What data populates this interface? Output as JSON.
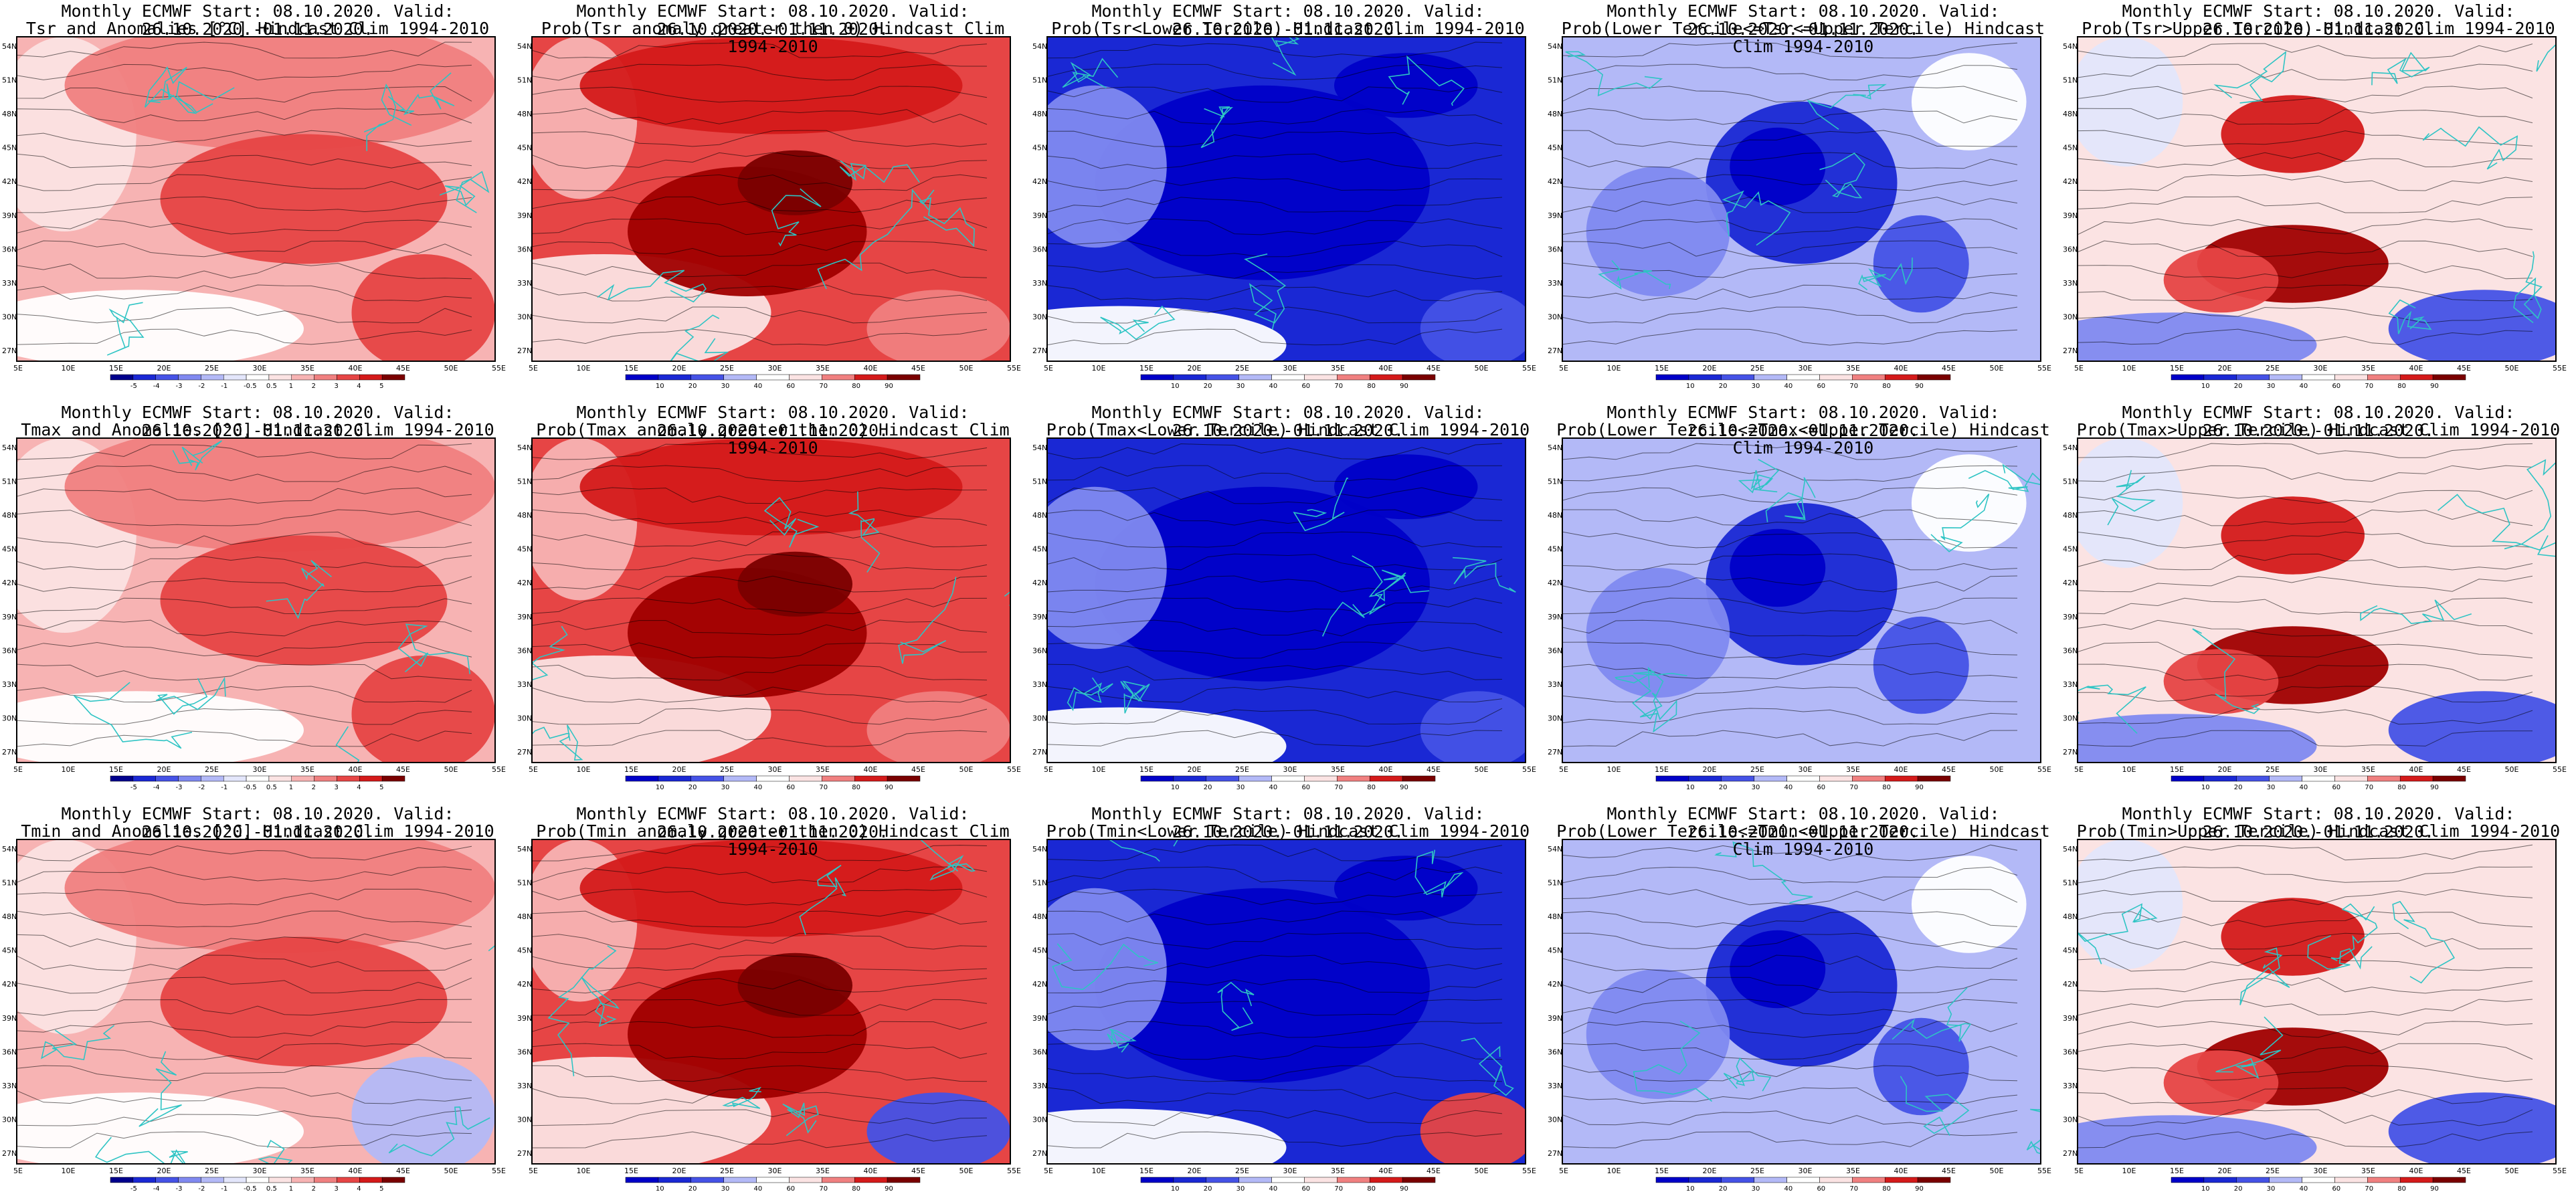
{
  "figure": {
    "layout": "3 rows x 5 columns of forecast maps",
    "lon_labels": [
      "5E",
      "10E",
      "15E",
      "20E",
      "25E",
      "30E",
      "35E",
      "40E",
      "45E",
      "50E",
      "55E"
    ],
    "lat_labels": [
      "54N",
      "51N",
      "48N",
      "45N",
      "42N",
      "39N",
      "36N",
      "33N",
      "30N",
      "27N"
    ],
    "colors": {
      "coast": "#2ec4c4",
      "contour": "#000000",
      "red_scale": [
        "#fbe3e3",
        "#f7b3b3",
        "#f08080",
        "#e64545",
        "#d41a1a",
        "#a00000",
        "#7a0000"
      ],
      "blue_scale": [
        "#e3e6fb",
        "#b3b9f7",
        "#8089f0",
        "#4552e6",
        "#1a28d4",
        "#0000c8",
        "#00008c"
      ]
    },
    "anom_colorbar_labels": [
      "-5",
      "-4",
      "-3",
      "-2",
      "-1",
      "-0.5",
      "0.5",
      "1",
      "2",
      "3",
      "4",
      "5"
    ],
    "prob_colorbar_labels": [
      "10",
      "20",
      "30",
      "40",
      "60",
      "70",
      "80",
      "90"
    ]
  },
  "panels": [
    {
      "id": "r1c1",
      "line1": "Monthly ECMWF Start: 08.10.2020. Valid: 26.10.2020.-01.11.2020.",
      "line2": "Tsr and Anomalies [°C] Hindcast Clim 1994-2010",
      "kind": "anom",
      "scheme": "warm-moderate"
    },
    {
      "id": "r1c2",
      "line1": "Monthly ECMWF Start: 08.10.2020. Valid: 26.10.2020.-01.11.2020.",
      "line2": "Prob(Tsr anomaly greater then 0) Hindcast Clim 1994-2010",
      "kind": "prob",
      "scheme": "warm-strong"
    },
    {
      "id": "r1c3",
      "line1": "Monthly ECMWF Start: 08.10.2020. Valid: 26.10.2020.-01.11.2020.",
      "line2": "Prob(Tsr<Lower Tercile) Hindcast Clim 1994-2010",
      "kind": "prob",
      "scheme": "cold-strong"
    },
    {
      "id": "r1c4",
      "line1": "Monthly ECMWF Start: 08.10.2020. Valid: 26.10.2020.-01.11.2020.",
      "line2": "Prob(Lower Tercile<=Tsr<=Upper Tercile) Hindcast Clim 1994-2010",
      "kind": "prob",
      "scheme": "mixed-blue"
    },
    {
      "id": "r1c5",
      "line1": "Monthly ECMWF Start: 08.10.2020. Valid: 26.10.2020.-01.11.2020.",
      "line2": "Prob(Tsr>Upper Tercile) Hindcast Clim 1994-2010",
      "kind": "prob",
      "scheme": "mixed-red"
    },
    {
      "id": "r2c1",
      "line1": "Monthly ECMWF Start: 08.10.2020. Valid: 26.10.2020.-01.11.2020.",
      "line2": "Tmax and Anomalies [°C] Hindcast Clim 1994-2010",
      "kind": "anom",
      "scheme": "warm-moderate"
    },
    {
      "id": "r2c2",
      "line1": "Monthly ECMWF Start: 08.10.2020. Valid: 26.10.2020.-01.11.2020.",
      "line2": "Prob(Tmax anomaly greater then 0) Hindcast Clim 1994-2010",
      "kind": "prob",
      "scheme": "warm-strong"
    },
    {
      "id": "r2c3",
      "line1": "Monthly ECMWF Start: 08.10.2020. Valid: 26.10.2020.-01.11.2020.",
      "line2": "Prob(Tmax<Lower Tercile) Hindcast Clim 1994-2010",
      "kind": "prob",
      "scheme": "cold-strong"
    },
    {
      "id": "r2c4",
      "line1": "Monthly ECMWF Start: 08.10.2020. Valid: 26.10.2020.-01.11.2020.",
      "line2": "Prob(Lower Tercile<=Tmax<=Upper Tercile) Hindcast Clim 1994-2010",
      "kind": "prob",
      "scheme": "mixed-blue"
    },
    {
      "id": "r2c5",
      "line1": "Monthly ECMWF Start: 08.10.2020. Valid: 26.10.2020.-01.11.2020.",
      "line2": "Prob(Tmax>Upper Tercile) Hindcast Clim 1994-2010",
      "kind": "prob",
      "scheme": "mixed-red"
    },
    {
      "id": "r3c1",
      "line1": "Monthly ECMWF Start: 08.10.2020. Valid: 26.10.2020.-01.11.2020.",
      "line2": "Tmin and Anomalies [°C] Hindcast Clim 1994-2010",
      "kind": "anom",
      "scheme": "warm-moderate"
    },
    {
      "id": "r3c2",
      "line1": "Monthly ECMWF Start: 08.10.2020. Valid: 26.10.2020.-01.11.2020.",
      "line2": "Prob(Tmin anomaly greater then 0) Hindcast Clim 1994-2010",
      "kind": "prob",
      "scheme": "warm-strong"
    },
    {
      "id": "r3c3",
      "line1": "Monthly ECMWF Start: 08.10.2020. Valid: 26.10.2020.-01.11.2020.",
      "line2": "Prob(Tmin<Lower Tercile) Hindcast Clim 1994-2010",
      "kind": "prob",
      "scheme": "cold-strong"
    },
    {
      "id": "r3c4",
      "line1": "Monthly ECMWF Start: 08.10.2020. Valid: 26.10.2020.-01.11.2020.",
      "line2": "Prob(Lower Tercile<=Tmin<=Upper Tercile) Hindcast Clim 1994-2010",
      "kind": "prob",
      "scheme": "mixed-blue"
    },
    {
      "id": "r3c5",
      "line1": "Monthly ECMWF Start: 08.10.2020. Valid: 26.10.2020.-01.11.2020.",
      "line2": "Prob(Tmin>Upper Tercile) Hindcast Clim 1994-2010",
      "kind": "prob",
      "scheme": "mixed-red"
    }
  ]
}
